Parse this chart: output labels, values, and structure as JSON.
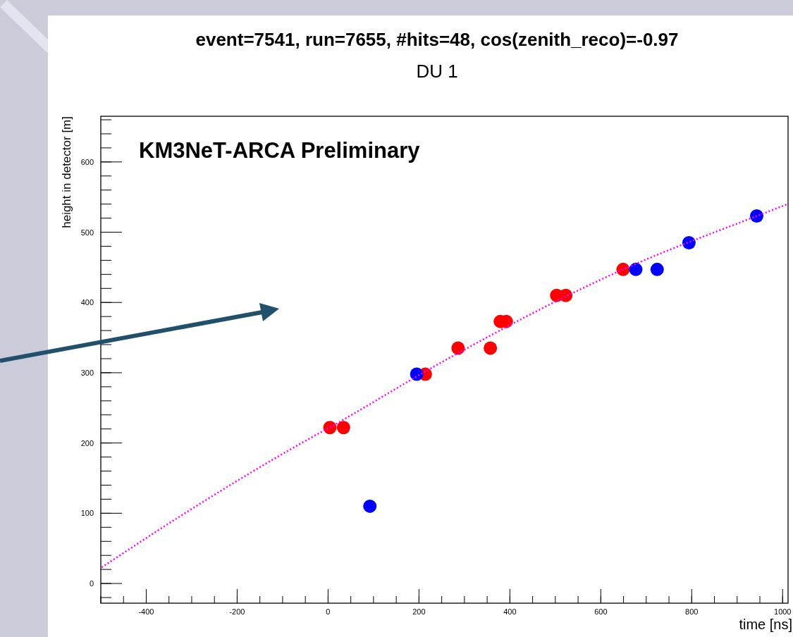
{
  "chart_data": {
    "type": "scatter",
    "title": "event=7541, run=7655, #hits=48, cos(zenith_reco)=-0.97",
    "subtitle": "DU 1",
    "xlabel": "time [ns]",
    "ylabel": "height in detector [m]",
    "annotations": [
      "KM3NeT-ARCA Preliminary"
    ],
    "xlim": [
      -500,
      1012
    ],
    "ylim": [
      -28,
      665
    ],
    "xticks": [
      -400,
      -200,
      0,
      200,
      400,
      600,
      800,
      1000
    ],
    "yticks": [
      0,
      100,
      200,
      300,
      400,
      500,
      600
    ],
    "grid": false,
    "marker": "circle",
    "series": [
      {
        "type": "line",
        "color": "#ff00ff",
        "line_style": "dotted",
        "marker": "none",
        "x": [
          -498,
          -320,
          -39,
          3,
          250,
          649,
          943,
          1011
        ],
        "values": [
          23,
          98,
          207,
          222,
          315,
          447,
          523,
          540
        ]
      },
      {
        "color": "#ff0000",
        "x": [
          4,
          34,
          214,
          286,
          357,
          379,
          392,
          503,
          523,
          649
        ],
        "values": [
          222,
          222,
          298,
          335,
          335,
          373,
          373,
          410,
          410,
          447
        ]
      },
      {
        "color": "#0000ff",
        "x": [
          92,
          195,
          677,
          724,
          794,
          943
        ],
        "values": [
          110,
          298,
          447,
          447,
          485,
          523
        ]
      }
    ]
  }
}
